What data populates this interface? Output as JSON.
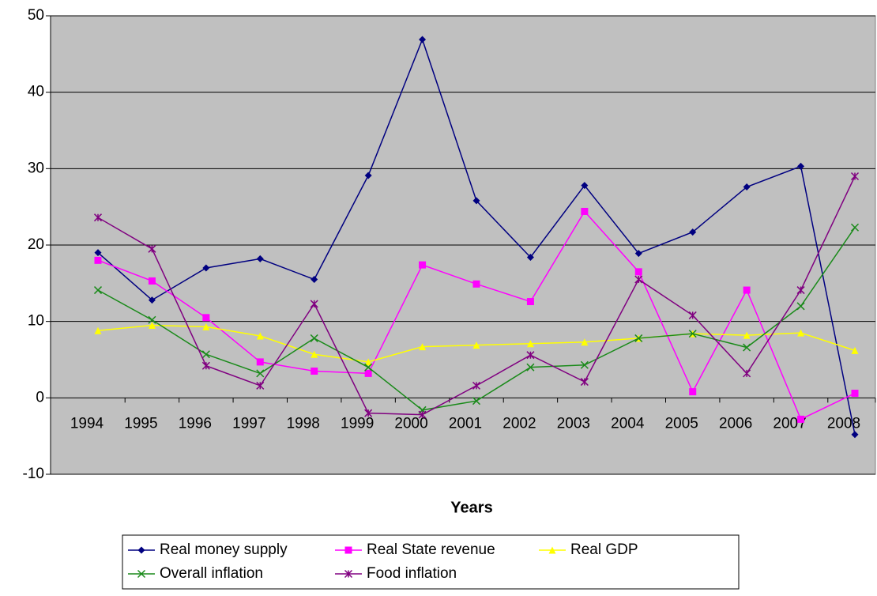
{
  "chart_data": {
    "type": "line",
    "x_label": "Years",
    "categories": [
      "1994",
      "1995",
      "1996",
      "1997",
      "1998",
      "1999",
      "2000",
      "2001",
      "2002",
      "2003",
      "2004",
      "2005",
      "2006",
      "2007",
      "2008"
    ],
    "series": [
      {
        "name": "Real money supply",
        "color": "#000080",
        "marker": "diamond",
        "values": [
          19,
          12.8,
          17,
          18.2,
          15.5,
          29.1,
          46.9,
          25.8,
          18.4,
          27.8,
          18.9,
          21.7,
          27.6,
          30.3,
          -4.8
        ]
      },
      {
        "name": "Real State revenue",
        "color": "#ff00ff",
        "marker": "square",
        "values": [
          18,
          15.3,
          10.5,
          4.7,
          3.5,
          3.2,
          17.4,
          14.9,
          12.6,
          24.4,
          16.5,
          0.8,
          14.1,
          -2.8,
          0.6
        ]
      },
      {
        "name": "Real GDP",
        "color": "#ffff00",
        "marker": "triangle",
        "values": [
          8.8,
          9.5,
          9.3,
          8.1,
          5.7,
          4.7,
          6.7,
          6.9,
          7.1,
          7.3,
          7.8,
          8.4,
          8.2,
          8.5,
          6.2
        ]
      },
      {
        "name": "Overall inflation",
        "color": "#1a8a1a",
        "marker": "x",
        "values": [
          14.1,
          10.2,
          5.7,
          3.2,
          7.8,
          4,
          -1.6,
          -0.4,
          4,
          4.3,
          7.8,
          8.4,
          6.6,
          12,
          22.3
        ]
      },
      {
        "name": "Food inflation",
        "color": "#800080",
        "marker": "star",
        "values": [
          23.6,
          19.5,
          4.2,
          1.6,
          12.3,
          -2,
          -2.2,
          1.6,
          5.6,
          2.1,
          15.5,
          10.8,
          3.2,
          14.1,
          29
        ]
      }
    ],
    "ylim": [
      -10,
      50
    ],
    "yticks": [
      -10,
      0,
      10,
      20,
      30,
      40,
      50
    ],
    "grid": true
  }
}
